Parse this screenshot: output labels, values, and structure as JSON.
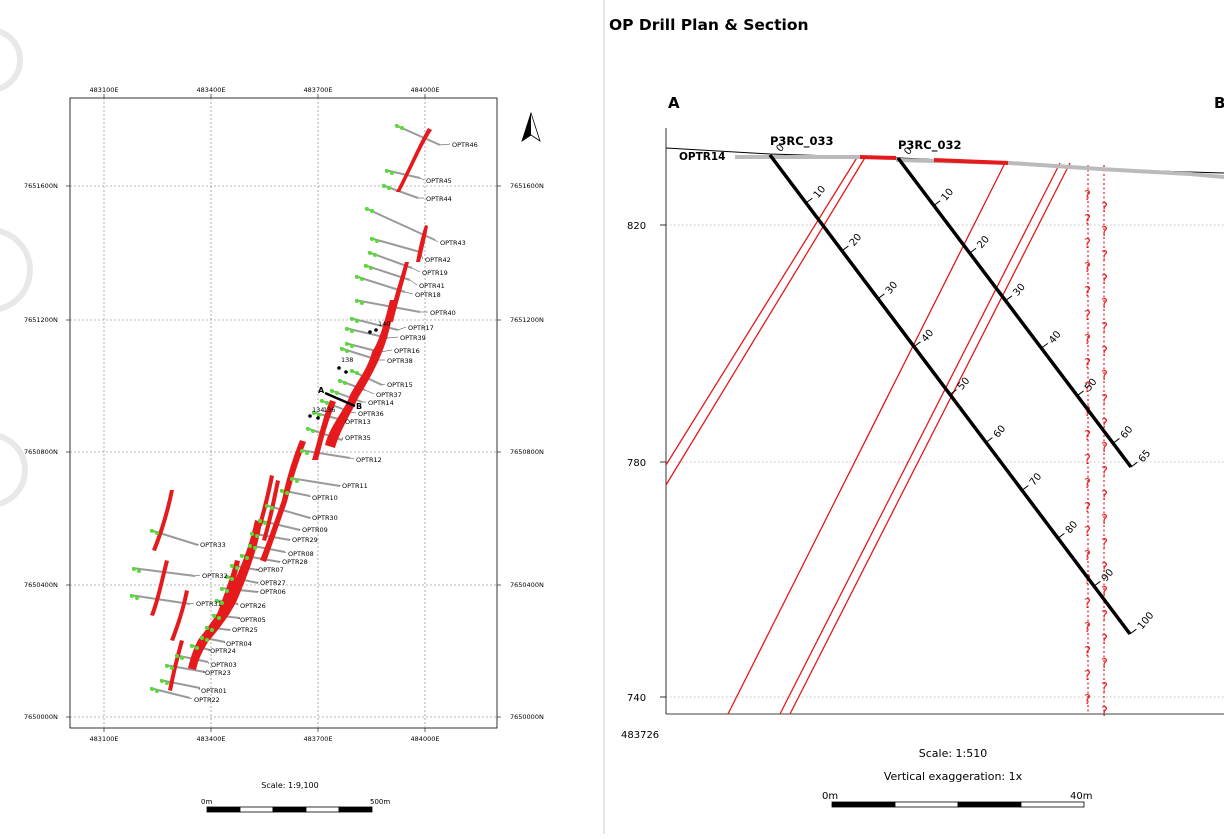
{
  "plan": {
    "easting_labels": [
      "483100E",
      "483400E",
      "483700E",
      "484000E"
    ],
    "northing_labels": [
      "7651600N",
      "7651200N",
      "7650800N",
      "7650400N",
      "7650000N"
    ],
    "scale_label": "Scale: 1:9,100",
    "scalebar_start": "0m",
    "scalebar_end": "500m",
    "section_start": "A",
    "section_end": "B",
    "north_arrow_icon": "north-arrow-icon",
    "trench_labels": [
      "OPTR46",
      "OPTR45",
      "OPTR44",
      "OPTR43",
      "OPTR42",
      "OPTR19",
      "OPTR41",
      "OPTR18",
      "OPTR40",
      "OPTR17",
      "OPTR39",
      "OPTR16",
      "OPTR38",
      "OPTR15",
      "OPTR37",
      "OPTR14",
      "OPTR36",
      "OPTR13",
      "OPTR35",
      "OPTR12",
      "OPTR11",
      "OPTR10",
      "OPTR30",
      "OPTR09",
      "OPTR29",
      "OPTR08",
      "OPTR28",
      "OPTR07",
      "OPTR27",
      "OPTR06",
      "OPTR26",
      "OPTR05",
      "OPTR25",
      "OPTR04",
      "OPTR24",
      "OPTR03",
      "OPTR23",
      "OPTR01",
      "OPTR22",
      "OPTR33",
      "OPTR32",
      "OPTR31"
    ],
    "collar_labels": [
      "140",
      "138",
      "134",
      "136"
    ],
    "colors": {
      "ore": "#e41a1c",
      "collar": "#55dd33",
      "trench": "#9a9a9a",
      "grid": "#777777"
    }
  },
  "section": {
    "title": "OP Drill Plan & Section",
    "end_a": "A",
    "end_b": "B",
    "elevation_labels": [
      "820",
      "780",
      "740"
    ],
    "easting_label": "483726",
    "trench_label": "OPTR14",
    "scale_label": "Scale: 1:510",
    "vertical_exaggeration": "Vertical exaggeration: 1x",
    "scalebar_start": "0m",
    "scalebar_end": "40m",
    "colors": {
      "ore": "#e41a1c",
      "drillhole": "#000000",
      "surface": "#bbbbbb"
    },
    "holes": [
      {
        "name": "P3RC_033",
        "depth_labels": [
          "0",
          "10",
          "20",
          "30",
          "40",
          "50",
          "60",
          "70",
          "80",
          "90",
          "100"
        ]
      },
      {
        "name": "P3RC_032",
        "depth_labels": [
          "0",
          "10",
          "20",
          "30",
          "40",
          "50",
          "60",
          "65"
        ]
      }
    ],
    "unknown_marker": "?"
  }
}
